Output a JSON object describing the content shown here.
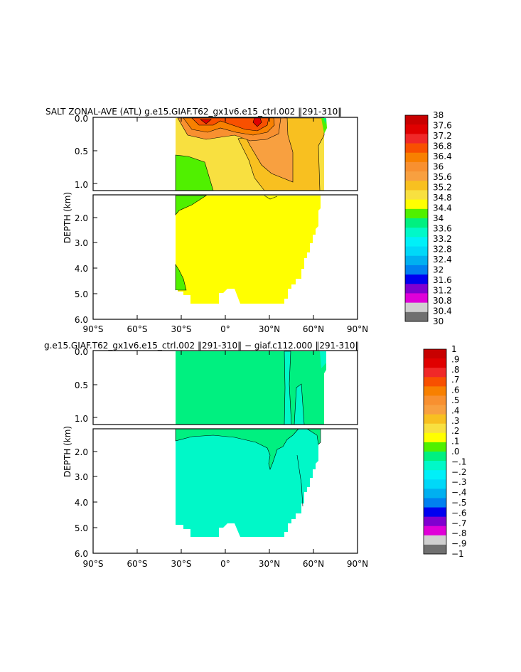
{
  "chart_data": [
    {
      "type": "heatmap",
      "title": "SALT ZONAL-AVE (ATL) g.e15.GIAF.T62_gx1v6.e15_ctrl.002 ‖291-310‖",
      "ylabel": "DEPTH (km)",
      "xlim": [
        -90,
        90
      ],
      "ylim": [
        0,
        6
      ],
      "x_tick_labels": [
        "90°S",
        "60°S",
        "30°S",
        "0°",
        "30°N",
        "60°N",
        "90°N"
      ],
      "y_tick_labels_upper": [
        "0.0",
        "0.5",
        "1.0"
      ],
      "y_tick_labels_lower": [
        "2.0",
        "3.0",
        "4.0",
        "5.0",
        "6.0"
      ],
      "colorbar_labels": [
        "38",
        "37.6",
        "37.2",
        "36.8",
        "36.4",
        "36",
        "35.6",
        "35.2",
        "34.8",
        "34.4",
        "34",
        "33.6",
        "33.2",
        "32.8",
        "32.4",
        "32",
        "31.6",
        "31.2",
        "30.8",
        "30.4",
        "30"
      ],
      "colorbar_colors": [
        "#c80000",
        "#e00000",
        "#f02828",
        "#f85000",
        "#f88000",
        "#f89030",
        "#f8a040",
        "#f8c020",
        "#f8e040",
        "#ffff00",
        "#50f000",
        "#00f080",
        "#00f8c8",
        "#00f0f8",
        "#00d8f8",
        "#00b0f0",
        "#0080f0",
        "#0000f0",
        "#8000d0",
        "#e000d8",
        "#d0d0d0",
        "#707070"
      ],
      "grid": false
    },
    {
      "type": "heatmap",
      "title": "g.e15.GIAF.T62_gx1v6.e15_ctrl.002 ‖291-310‖ − giaf.c112.000 ‖291-310‖",
      "ylabel": "DEPTH (km)",
      "xlim": [
        -90,
        90
      ],
      "ylim": [
        0,
        6
      ],
      "x_tick_labels": [
        "90°S",
        "60°S",
        "30°S",
        "0°",
        "30°N",
        "60°N",
        "90°N"
      ],
      "y_tick_labels_upper": [
        "0.0",
        "0.5",
        "1.0"
      ],
      "y_tick_labels_lower": [
        "2.0",
        "3.0",
        "4.0",
        "5.0",
        "6.0"
      ],
      "colorbar_labels": [
        "1",
        ".9",
        ".8",
        ".7",
        ".6",
        ".5",
        ".4",
        ".3",
        ".2",
        ".1",
        ".0",
        "−.1",
        "−.2",
        "−.3",
        "−.4",
        "−.5",
        "−.6",
        "−.7",
        "−.8",
        "−.9",
        "−1"
      ],
      "colorbar_colors": [
        "#c80000",
        "#e00000",
        "#f02828",
        "#f85000",
        "#f88000",
        "#f89030",
        "#f8a040",
        "#f8c020",
        "#f8e040",
        "#ffff00",
        "#50f000",
        "#00f080",
        "#00f8c8",
        "#00f0f8",
        "#00d8f8",
        "#00b0f0",
        "#0080f0",
        "#0000f0",
        "#8000d0",
        "#e000d8",
        "#d0d0d0",
        "#707070"
      ],
      "grid": false
    }
  ]
}
